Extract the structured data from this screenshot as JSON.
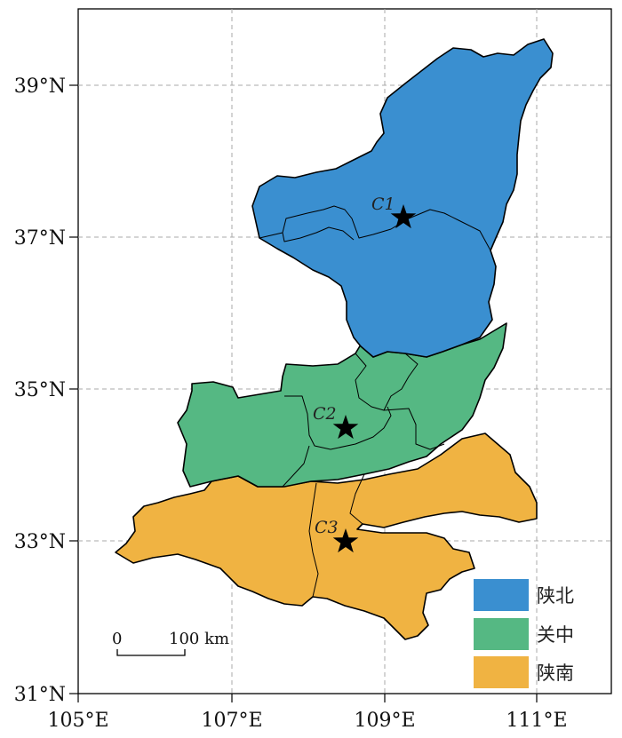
{
  "map": {
    "x_ticks": [
      "105°E",
      "107°E",
      "109°E",
      "111°E"
    ],
    "y_ticks": [
      "31°N",
      "33°N",
      "35°N",
      "37°N",
      "39°N"
    ],
    "regions": [
      {
        "id": "north",
        "label": "陕北",
        "color": "#3a8fd0"
      },
      {
        "id": "central",
        "label": "关中",
        "color": "#55b883"
      },
      {
        "id": "south",
        "label": "陕南",
        "color": "#f0b342"
      }
    ],
    "cities": [
      {
        "label": "C1",
        "lon": 109.25,
        "lat": 37.25
      },
      {
        "label": "C2",
        "lon": 108.5,
        "lat": 34.5
      },
      {
        "label": "C3",
        "lon": 108.5,
        "lat": 33.0
      }
    ],
    "scale_bar": {
      "start_label": "0",
      "end_label": "100 km"
    }
  }
}
